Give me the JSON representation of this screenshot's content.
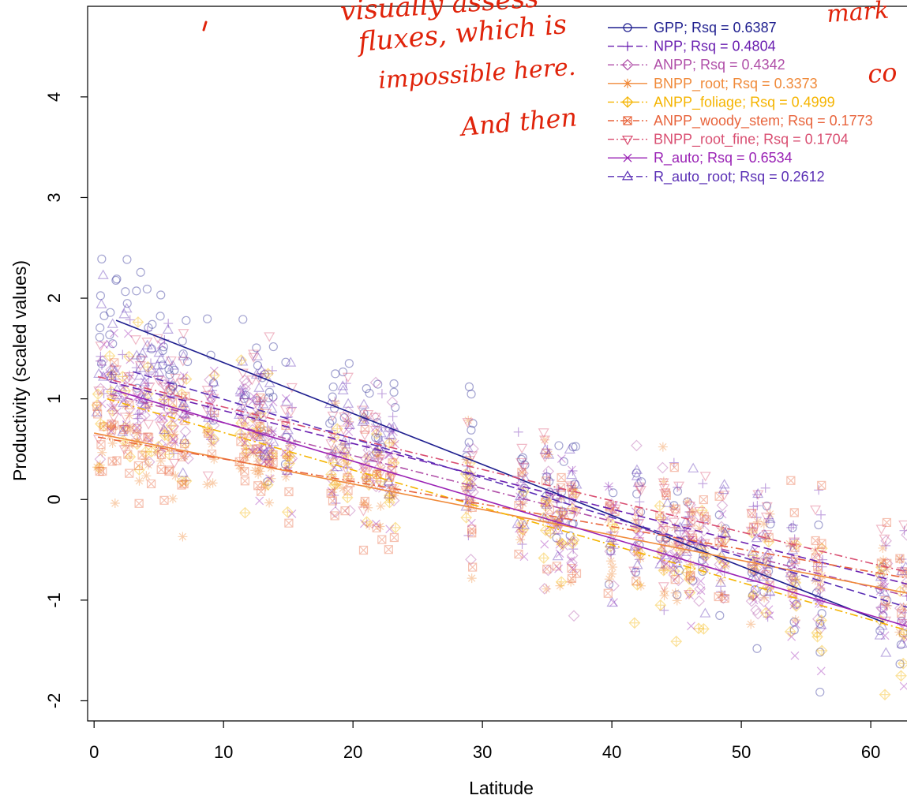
{
  "chart_data": {
    "type": "scatter",
    "title": "",
    "xlabel": "Latitude",
    "ylabel": "Productivity (scaled values)",
    "xlim": [
      -0.5,
      62.8
    ],
    "ylim": [
      -2.2,
      4.9
    ],
    "xticks": [
      0,
      10,
      20,
      30,
      40,
      50,
      60
    ],
    "yticks": [
      -2,
      -1,
      0,
      1,
      2,
      3,
      4
    ],
    "grid": false,
    "legend_position": "top-right",
    "scatter_clusters_x": [
      0.5,
      1.5,
      2.5,
      3.5,
      4.2,
      5.2,
      6.0,
      7.0,
      9.0,
      11.5,
      12.5,
      13.0,
      13.6,
      15.0,
      18.5,
      19.5,
      21.0,
      22.0,
      23.0,
      29.0,
      33.0,
      35.0,
      36.0,
      37.0,
      40.0,
      42.0,
      44.0,
      45.0,
      46.0,
      47.0,
      48.5,
      51.0,
      52.0,
      54.0,
      56.0,
      61.0,
      62.5
    ],
    "series": [
      {
        "name": "GPP; Rsq = 0.6387",
        "color": "#1f1f8f",
        "marker": "circle",
        "dash": "solid",
        "fit": {
          "x": [
            1.7,
            61.0
          ],
          "y": [
            1.78,
            -1.22
          ]
        }
      },
      {
        "name": "NPP; Rsq = 0.4804",
        "color": "#6a1fb0",
        "marker": "plus",
        "dash": "dash",
        "fit": {
          "x": [
            1.2,
            62.8
          ],
          "y": [
            1.17,
            -0.84
          ]
        }
      },
      {
        "name": "ANPP; Rsq = 0.4342",
        "color": "#b04fa8",
        "marker": "diamond",
        "dash": "dashdot",
        "fit": {
          "x": [
            1.2,
            62.8
          ],
          "y": [
            1.05,
            -0.96
          ]
        }
      },
      {
        "name": "BNPP_root; Rsq = 0.3373",
        "color": "#f08a3a",
        "marker": "asterisk",
        "dash": "solid",
        "fit": {
          "x": [
            0.0,
            62.8
          ],
          "y": [
            0.66,
            -0.93
          ]
        }
      },
      {
        "name": "ANPP_foliage; Rsq = 0.4999",
        "color": "#f5b400",
        "marker": "diamond-plus",
        "dash": "dashdot",
        "fit": {
          "x": [
            1.0,
            62.8
          ],
          "y": [
            1.0,
            -1.3
          ]
        }
      },
      {
        "name": "ANPP_woody_stem; Rsq = 0.1773",
        "color": "#e8643c",
        "marker": "square-x",
        "dash": "dashdot",
        "fit": {
          "x": [
            0.3,
            62.8
          ],
          "y": [
            0.62,
            -0.78
          ]
        }
      },
      {
        "name": "BNPP_root_fine; Rsq = 0.1704",
        "color": "#d94f72",
        "marker": "triangle-down",
        "dash": "dashdot",
        "fit": {
          "x": [
            0.3,
            62.8
          ],
          "y": [
            1.22,
            -0.72
          ]
        }
      },
      {
        "name": "R_auto; Rsq = 0.6534",
        "color": "#9a22b5",
        "marker": "cross",
        "dash": "solid",
        "fit": {
          "x": [
            1.5,
            62.8
          ],
          "y": [
            1.09,
            -1.26
          ]
        }
      },
      {
        "name": "R_auto_root; Rsq = 0.2612",
        "color": "#5a2fb5",
        "marker": "triangle",
        "dash": "dash",
        "fit": {
          "x": [
            3.0,
            62.8
          ],
          "y": [
            1.27,
            -1.07
          ]
        }
      }
    ]
  },
  "annotation": {
    "color": "#e0230a",
    "lines": [
      "visually assess",
      "fluxes, which is",
      "impossible here.",
      "And then"
    ],
    "fragments": [
      "mark",
      "co"
    ]
  }
}
